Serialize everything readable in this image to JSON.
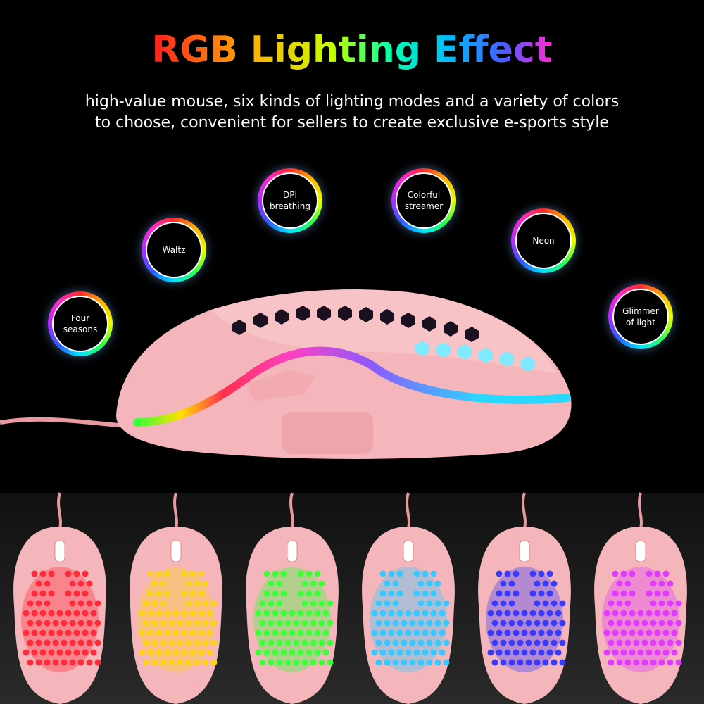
{
  "title": "RGB Lighting Effect",
  "subtitle": [
    "high-value mouse, six kinds of lighting modes and a variety of colors",
    "to choose, convenient for sellers to create exclusive e-sports style"
  ],
  "modes": [
    {
      "lines": [
        "Four",
        "seasons"
      ]
    },
    {
      "lines": [
        "Waltz"
      ]
    },
    {
      "lines": [
        "DPI",
        "breathing"
      ]
    },
    {
      "lines": [
        "Colorful",
        "streamer"
      ]
    },
    {
      "lines": [
        "Neon"
      ]
    },
    {
      "lines": [
        "Glimmer",
        "of light"
      ]
    }
  ]
}
